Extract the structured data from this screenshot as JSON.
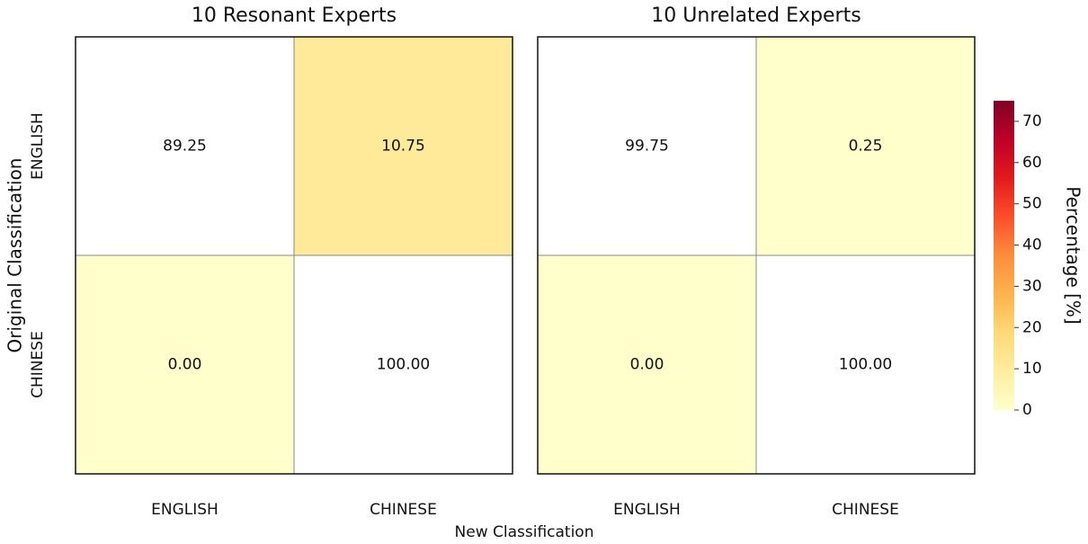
{
  "chart_data": [
    {
      "type": "heatmap",
      "title": "10 Resonant Experts",
      "xlabel": "New Classification",
      "ylabel": "Original Classification",
      "x_categories": [
        "ENGLISH",
        "CHINESE"
      ],
      "y_categories": [
        "ENGLISH",
        "CHINESE"
      ],
      "values": [
        [
          89.25,
          10.75
        ],
        [
          0.0,
          100.0
        ]
      ],
      "value_labels": [
        [
          "89.25",
          "10.75"
        ],
        [
          "0.00",
          "100.00"
        ]
      ],
      "colormap": "YlOrRd",
      "vlim": [
        0,
        75
      ],
      "mask_diagonal": true
    },
    {
      "type": "heatmap",
      "title": "10 Unrelated Experts",
      "x_categories": [
        "ENGLISH",
        "CHINESE"
      ],
      "y_categories": [
        "ENGLISH",
        "CHINESE"
      ],
      "values": [
        [
          99.75,
          0.25
        ],
        [
          0.0,
          100.0
        ]
      ],
      "value_labels": [
        [
          "99.75",
          "0.25"
        ],
        [
          "0.00",
          "100.00"
        ]
      ],
      "colormap": "YlOrRd",
      "vlim": [
        0,
        75
      ],
      "mask_diagonal": true,
      "colorbar": {
        "label": "Percentage [%]",
        "lim": [
          0,
          75
        ],
        "ticks": [
          0,
          10,
          20,
          30,
          40,
          50,
          60,
          70
        ]
      }
    }
  ]
}
